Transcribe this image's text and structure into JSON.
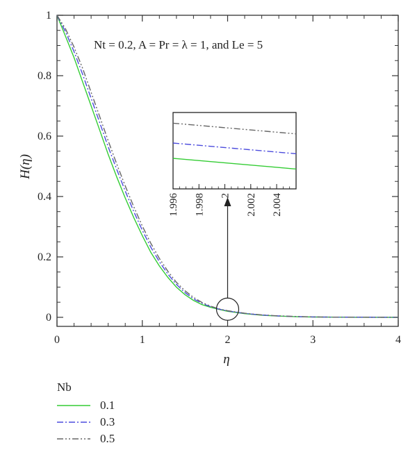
{
  "chart_data": {
    "type": "line",
    "annotation": "Nt = 0.2, A = Pr = λ = 1, and Le = 5",
    "xlabel": "η",
    "ylabel": "H(η)",
    "xlim": [
      0,
      4
    ],
    "ylim": [
      -0.03,
      1.0
    ],
    "x_ticks": [
      "0",
      "1",
      "2",
      "3",
      "4"
    ],
    "y_ticks": [
      "0",
      "0.2",
      "0.4",
      "0.6",
      "0.8",
      "1"
    ],
    "grid": false,
    "legend": {
      "title": "Nb",
      "placement": "below"
    },
    "colors": {
      "0.1": "#33cc33",
      "0.3": "#4b4bdd",
      "0.5": "#666666"
    },
    "x": [
      0,
      0.1,
      0.2,
      0.3,
      0.4,
      0.5,
      0.6,
      0.7,
      0.8,
      0.9,
      1.0,
      1.1,
      1.2,
      1.3,
      1.4,
      1.5,
      1.6,
      1.7,
      1.8,
      1.9,
      2.0,
      2.2,
      2.4,
      2.6,
      2.8,
      3.0,
      3.25,
      3.5,
      3.75,
      4.0
    ],
    "series": [
      {
        "name": "0.1",
        "style": "solid",
        "values": [
          1.0,
          0.93,
          0.86,
          0.78,
          0.7,
          0.62,
          0.54,
          0.465,
          0.395,
          0.33,
          0.27,
          0.215,
          0.17,
          0.132,
          0.1,
          0.075,
          0.056,
          0.042,
          0.033,
          0.026,
          0.02,
          0.012,
          0.007,
          0.004,
          0.002,
          0.001,
          0.0005,
          0.0002,
          0.0001,
          0.0
        ]
      },
      {
        "name": "0.3",
        "style": "dashdot",
        "values": [
          1.0,
          0.945,
          0.88,
          0.805,
          0.725,
          0.645,
          0.565,
          0.49,
          0.418,
          0.35,
          0.288,
          0.232,
          0.184,
          0.143,
          0.109,
          0.082,
          0.061,
          0.046,
          0.035,
          0.027,
          0.021,
          0.013,
          0.0075,
          0.0045,
          0.0025,
          0.0012,
          0.0006,
          0.0003,
          0.0001,
          0.0
        ]
      },
      {
        "name": "0.5",
        "style": "dashdotdot",
        "values": [
          1.0,
          0.955,
          0.895,
          0.825,
          0.745,
          0.665,
          0.585,
          0.508,
          0.435,
          0.366,
          0.302,
          0.245,
          0.195,
          0.152,
          0.116,
          0.088,
          0.066,
          0.049,
          0.037,
          0.028,
          0.022,
          0.0135,
          0.008,
          0.0048,
          0.0027,
          0.0013,
          0.0006,
          0.0003,
          0.0001,
          0.0
        ]
      }
    ],
    "inset": {
      "x_ticks": [
        "1.996",
        "1.998",
        "2",
        "2.002",
        "2.004"
      ],
      "xlim": [
        1.996,
        2.0055
      ],
      "ylim": [
        0.0185,
        0.0235
      ],
      "x": [
        1.996,
        2.0055
      ],
      "series": [
        {
          "name": "0.1",
          "values": [
            0.0205,
            0.0198
          ]
        },
        {
          "name": "0.3",
          "values": [
            0.0215,
            0.0208
          ]
        },
        {
          "name": "0.5",
          "values": [
            0.0228,
            0.0221
          ]
        }
      ]
    }
  }
}
